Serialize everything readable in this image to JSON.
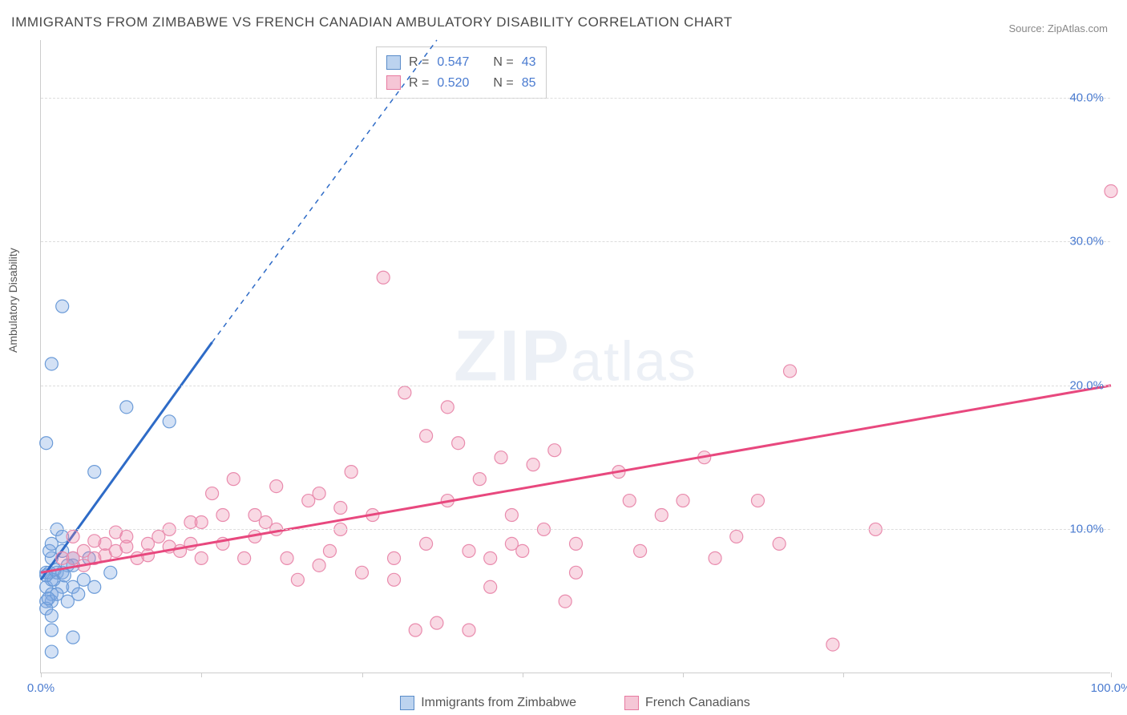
{
  "title": "IMMIGRANTS FROM ZIMBABWE VS FRENCH CANADIAN AMBULATORY DISABILITY CORRELATION CHART",
  "source": "Source: ZipAtlas.com",
  "y_axis_label": "Ambulatory Disability",
  "watermark_zip": "ZIP",
  "watermark_atlas": "atlas",
  "chart": {
    "type": "scatter",
    "xlim": [
      0,
      100
    ],
    "ylim": [
      0,
      44
    ],
    "x_ticks": [
      0,
      15,
      30,
      45,
      60,
      75,
      100
    ],
    "x_tick_labels": {
      "0": "0.0%",
      "100": "100.0%"
    },
    "y_ticks": [
      10,
      20,
      30,
      40
    ],
    "y_tick_labels": {
      "10": "10.0%",
      "20": "20.0%",
      "30": "30.0%",
      "40": "40.0%"
    },
    "background_color": "#ffffff",
    "grid_color": "#dddddd",
    "series": [
      {
        "name": "Immigrants from Zimbabwe",
        "color_fill": "rgba(130,170,225,0.35)",
        "color_stroke": "#6b9bd8",
        "swatch_fill": "#bcd3ef",
        "swatch_stroke": "#5a8cc9",
        "marker_radius": 8,
        "R": "0.547",
        "N": "43",
        "trend": {
          "x1": 0,
          "y1": 6.5,
          "x2": 16,
          "y2": 23,
          "color": "#2e6bc7",
          "width": 3,
          "dash_x1": 16,
          "dash_y1": 23,
          "dash_x2": 37,
          "dash_y2": 44
        },
        "points": [
          [
            0.5,
            6
          ],
          [
            0.5,
            7
          ],
          [
            1,
            5.5
          ],
          [
            1,
            6.5
          ],
          [
            1.5,
            7
          ],
          [
            1,
            8
          ],
          [
            0.8,
            8.5
          ],
          [
            2,
            6
          ],
          [
            2,
            7
          ],
          [
            2.5,
            7.5
          ],
          [
            1,
            5
          ],
          [
            0.5,
            5
          ],
          [
            0.5,
            4.5
          ],
          [
            3,
            6
          ],
          [
            3,
            7.5
          ],
          [
            4,
            6.5
          ],
          [
            1,
            4
          ],
          [
            1,
            3
          ],
          [
            1,
            1.5
          ],
          [
            3,
            2.5
          ],
          [
            5,
            6
          ],
          [
            6.5,
            7
          ],
          [
            0.5,
            16
          ],
          [
            1,
            21.5
          ],
          [
            2,
            25.5
          ],
          [
            5,
            14
          ],
          [
            8,
            18.5
          ],
          [
            12,
            17.5
          ],
          [
            1,
            9
          ],
          [
            2,
            8.5
          ],
          [
            3,
            8
          ],
          [
            1.5,
            10
          ],
          [
            2,
            9.5
          ],
          [
            0.8,
            7
          ],
          [
            1.2,
            6.5
          ],
          [
            1.5,
            5.5
          ],
          [
            2.5,
            5
          ],
          [
            3.5,
            5.5
          ],
          [
            4.5,
            8
          ],
          [
            0.5,
            6.8
          ],
          [
            1.3,
            7.2
          ],
          [
            2.2,
            6.8
          ],
          [
            0.7,
            5.2
          ]
        ]
      },
      {
        "name": "French Canadians",
        "color_fill": "rgba(235,130,165,0.30)",
        "color_stroke": "#e98bad",
        "swatch_fill": "#f5c6d6",
        "swatch_stroke": "#e77aa0",
        "marker_radius": 8,
        "R": "0.520",
        "N": "85",
        "trend": {
          "x1": 0,
          "y1": 7,
          "x2": 100,
          "y2": 20,
          "color": "#e8487e",
          "width": 3
        },
        "points": [
          [
            2,
            8
          ],
          [
            3,
            8
          ],
          [
            4,
            8.5
          ],
          [
            5,
            8
          ],
          [
            6,
            9
          ],
          [
            7,
            8.5
          ],
          [
            8,
            9.5
          ],
          [
            9,
            8
          ],
          [
            10,
            9
          ],
          [
            11,
            9.5
          ],
          [
            12,
            10
          ],
          [
            13,
            8.5
          ],
          [
            14,
            9
          ],
          [
            15,
            10.5
          ],
          [
            16,
            12.5
          ],
          [
            17,
            9
          ],
          [
            18,
            13.5
          ],
          [
            20,
            11
          ],
          [
            21,
            10.5
          ],
          [
            22,
            13
          ],
          [
            23,
            8
          ],
          [
            24,
            6.5
          ],
          [
            25,
            12
          ],
          [
            26,
            12.5
          ],
          [
            27,
            8.5
          ],
          [
            28,
            10
          ],
          [
            29,
            14
          ],
          [
            30,
            7
          ],
          [
            31,
            11
          ],
          [
            32,
            27.5
          ],
          [
            33,
            8
          ],
          [
            34,
            19.5
          ],
          [
            35,
            3
          ],
          [
            36,
            16.5
          ],
          [
            37,
            3.5
          ],
          [
            38,
            12
          ],
          [
            39,
            16
          ],
          [
            38,
            18.5
          ],
          [
            40,
            3
          ],
          [
            41,
            13.5
          ],
          [
            42,
            6
          ],
          [
            42,
            8
          ],
          [
            43,
            15
          ],
          [
            44,
            9
          ],
          [
            45,
            8.5
          ],
          [
            46,
            14.5
          ],
          [
            47,
            10
          ],
          [
            48,
            15.5
          ],
          [
            49,
            5
          ],
          [
            50,
            9
          ],
          [
            54,
            14
          ],
          [
            55,
            12
          ],
          [
            56,
            8.5
          ],
          [
            58,
            11
          ],
          [
            60,
            12
          ],
          [
            62,
            15
          ],
          [
            63,
            8
          ],
          [
            65,
            9.5
          ],
          [
            67,
            12
          ],
          [
            70,
            21
          ],
          [
            69,
            9
          ],
          [
            74,
            2
          ],
          [
            78,
            10
          ],
          [
            100,
            33.5
          ],
          [
            3,
            9.5
          ],
          [
            4,
            7.5
          ],
          [
            5,
            9.2
          ],
          [
            6,
            8.2
          ],
          [
            7,
            9.8
          ],
          [
            8,
            8.8
          ],
          [
            10,
            8.2
          ],
          [
            12,
            8.8
          ],
          [
            14,
            10.5
          ],
          [
            15,
            8
          ],
          [
            17,
            11
          ],
          [
            19,
            8
          ],
          [
            20,
            9.5
          ],
          [
            22,
            10
          ],
          [
            26,
            7.5
          ],
          [
            28,
            11.5
          ],
          [
            33,
            6.5
          ],
          [
            36,
            9
          ],
          [
            40,
            8.5
          ],
          [
            44,
            11
          ],
          [
            50,
            7
          ]
        ]
      }
    ]
  },
  "legend_labels": {
    "r_prefix": "R =",
    "n_prefix": "N ="
  }
}
